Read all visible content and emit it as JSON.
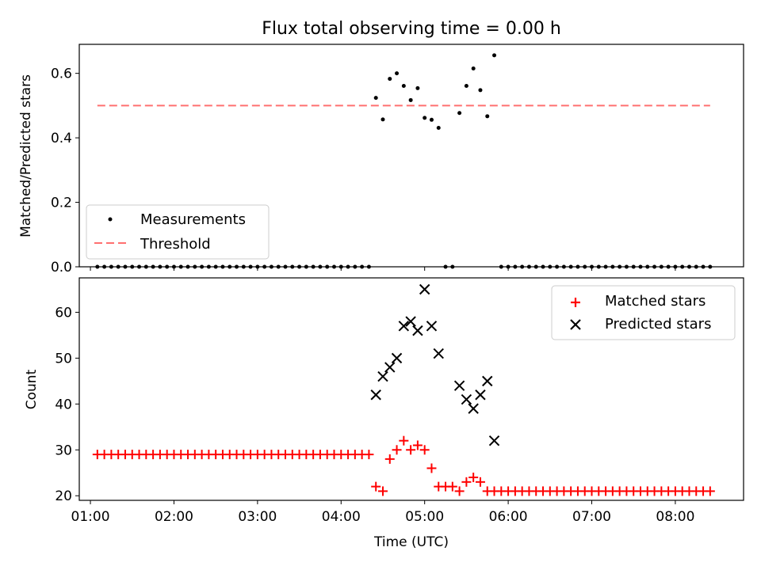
{
  "title": "Flux total observing time = 0.00 h",
  "colors": {
    "measurements": "#000000",
    "threshold": "#ff7070",
    "matched": "#ff0000",
    "predicted": "#000000"
  },
  "chart_data": [
    {
      "type": "scatter",
      "ylabel": "Matched/Predicted stars",
      "ylim": [
        0,
        0.69
      ],
      "yticks": [
        0.0,
        0.2,
        0.4,
        0.6
      ],
      "ytick_labels": [
        "0.0",
        "0.2",
        "0.4",
        "0.6"
      ],
      "xlim": [
        "00:52",
        "08:49"
      ],
      "legend": {
        "position": "lower-left",
        "entries": [
          "Measurements",
          "Threshold"
        ]
      },
      "threshold": {
        "name": "Threshold",
        "value": 0.5,
        "x_range": [
          "01:05",
          "08:25"
        ]
      },
      "series": [
        {
          "name": "Measurements",
          "points": [
            [
              "01:05",
              0
            ],
            [
              "01:10",
              0
            ],
            [
              "01:15",
              0
            ],
            [
              "01:20",
              0
            ],
            [
              "01:25",
              0
            ],
            [
              "01:30",
              0
            ],
            [
              "01:35",
              0
            ],
            [
              "01:40",
              0
            ],
            [
              "01:45",
              0
            ],
            [
              "01:50",
              0
            ],
            [
              "01:55",
              0
            ],
            [
              "02:00",
              0
            ],
            [
              "02:05",
              0
            ],
            [
              "02:10",
              0
            ],
            [
              "02:15",
              0
            ],
            [
              "02:20",
              0
            ],
            [
              "02:25",
              0
            ],
            [
              "02:30",
              0
            ],
            [
              "02:35",
              0
            ],
            [
              "02:40",
              0
            ],
            [
              "02:45",
              0
            ],
            [
              "02:50",
              0
            ],
            [
              "02:55",
              0
            ],
            [
              "03:00",
              0
            ],
            [
              "03:05",
              0
            ],
            [
              "03:10",
              0
            ],
            [
              "03:15",
              0
            ],
            [
              "03:20",
              0
            ],
            [
              "03:25",
              0
            ],
            [
              "03:30",
              0
            ],
            [
              "03:35",
              0
            ],
            [
              "03:40",
              0
            ],
            [
              "03:45",
              0
            ],
            [
              "03:50",
              0
            ],
            [
              "03:55",
              0
            ],
            [
              "04:00",
              0
            ],
            [
              "04:05",
              0
            ],
            [
              "04:10",
              0
            ],
            [
              "04:15",
              0
            ],
            [
              "04:20",
              0
            ],
            [
              "04:25",
              0.524
            ],
            [
              "04:30",
              0.457
            ],
            [
              "04:35",
              0.583
            ],
            [
              "04:40",
              0.6
            ],
            [
              "04:45",
              0.561
            ],
            [
              "04:50",
              0.517
            ],
            [
              "04:55",
              0.554
            ],
            [
              "05:00",
              0.462
            ],
            [
              "05:05",
              0.456
            ],
            [
              "05:10",
              0.431
            ],
            [
              "05:15",
              0
            ],
            [
              "05:20",
              0
            ],
            [
              "05:25",
              0.477
            ],
            [
              "05:30",
              0.561
            ],
            [
              "05:35",
              0.615
            ],
            [
              "05:40",
              0.548
            ],
            [
              "05:45",
              0.467
            ],
            [
              "05:50",
              0.656
            ],
            [
              "05:55",
              0
            ],
            [
              "06:00",
              0
            ],
            [
              "06:05",
              0
            ],
            [
              "06:10",
              0
            ],
            [
              "06:15",
              0
            ],
            [
              "06:20",
              0
            ],
            [
              "06:25",
              0
            ],
            [
              "06:30",
              0
            ],
            [
              "06:35",
              0
            ],
            [
              "06:40",
              0
            ],
            [
              "06:45",
              0
            ],
            [
              "06:50",
              0
            ],
            [
              "06:55",
              0
            ],
            [
              "07:00",
              0
            ],
            [
              "07:05",
              0
            ],
            [
              "07:10",
              0
            ],
            [
              "07:15",
              0
            ],
            [
              "07:20",
              0
            ],
            [
              "07:25",
              0
            ],
            [
              "07:30",
              0
            ],
            [
              "07:35",
              0
            ],
            [
              "07:40",
              0
            ],
            [
              "07:45",
              0
            ],
            [
              "07:50",
              0
            ],
            [
              "07:55",
              0
            ],
            [
              "08:00",
              0
            ],
            [
              "08:05",
              0
            ],
            [
              "08:10",
              0
            ],
            [
              "08:15",
              0
            ],
            [
              "08:20",
              0
            ],
            [
              "08:25",
              0
            ]
          ]
        }
      ]
    },
    {
      "type": "scatter",
      "ylabel": "Count",
      "xlabel": "Time (UTC)",
      "ylim": [
        19,
        67.5
      ],
      "yticks": [
        20,
        30,
        40,
        50,
        60
      ],
      "ytick_labels": [
        "20",
        "30",
        "40",
        "50",
        "60"
      ],
      "xlim": [
        "00:52",
        "08:49"
      ],
      "xticks": [
        "01:00",
        "02:00",
        "03:00",
        "04:00",
        "05:00",
        "06:00",
        "07:00",
        "08:00"
      ],
      "xtick_labels": [
        "01:00",
        "02:00",
        "03:00",
        "04:00",
        "05:00",
        "06:00",
        "07:00",
        "08:00"
      ],
      "legend": {
        "position": "top-right",
        "entries": [
          "Matched stars",
          "Predicted stars"
        ]
      },
      "series": [
        {
          "name": "Matched stars",
          "points": [
            [
              "01:05",
              29
            ],
            [
              "01:10",
              29
            ],
            [
              "01:15",
              29
            ],
            [
              "01:20",
              29
            ],
            [
              "01:25",
              29
            ],
            [
              "01:30",
              29
            ],
            [
              "01:35",
              29
            ],
            [
              "01:40",
              29
            ],
            [
              "01:45",
              29
            ],
            [
              "01:50",
              29
            ],
            [
              "01:55",
              29
            ],
            [
              "02:00",
              29
            ],
            [
              "02:05",
              29
            ],
            [
              "02:10",
              29
            ],
            [
              "02:15",
              29
            ],
            [
              "02:20",
              29
            ],
            [
              "02:25",
              29
            ],
            [
              "02:30",
              29
            ],
            [
              "02:35",
              29
            ],
            [
              "02:40",
              29
            ],
            [
              "02:45",
              29
            ],
            [
              "02:50",
              29
            ],
            [
              "02:55",
              29
            ],
            [
              "03:00",
              29
            ],
            [
              "03:05",
              29
            ],
            [
              "03:10",
              29
            ],
            [
              "03:15",
              29
            ],
            [
              "03:20",
              29
            ],
            [
              "03:25",
              29
            ],
            [
              "03:30",
              29
            ],
            [
              "03:35",
              29
            ],
            [
              "03:40",
              29
            ],
            [
              "03:45",
              29
            ],
            [
              "03:50",
              29
            ],
            [
              "03:55",
              29
            ],
            [
              "04:00",
              29
            ],
            [
              "04:05",
              29
            ],
            [
              "04:10",
              29
            ],
            [
              "04:15",
              29
            ],
            [
              "04:20",
              29
            ],
            [
              "04:25",
              22
            ],
            [
              "04:30",
              21
            ],
            [
              "04:35",
              28
            ],
            [
              "04:40",
              30
            ],
            [
              "04:45",
              32
            ],
            [
              "04:50",
              30
            ],
            [
              "04:55",
              31
            ],
            [
              "05:00",
              30
            ],
            [
              "05:05",
              26
            ],
            [
              "05:10",
              22
            ],
            [
              "05:15",
              22
            ],
            [
              "05:20",
              22
            ],
            [
              "05:25",
              21
            ],
            [
              "05:30",
              23
            ],
            [
              "05:35",
              24
            ],
            [
              "05:40",
              23
            ],
            [
              "05:45",
              21
            ],
            [
              "05:50",
              21
            ],
            [
              "05:55",
              21
            ],
            [
              "06:00",
              21
            ],
            [
              "06:05",
              21
            ],
            [
              "06:10",
              21
            ],
            [
              "06:15",
              21
            ],
            [
              "06:20",
              21
            ],
            [
              "06:25",
              21
            ],
            [
              "06:30",
              21
            ],
            [
              "06:35",
              21
            ],
            [
              "06:40",
              21
            ],
            [
              "06:45",
              21
            ],
            [
              "06:50",
              21
            ],
            [
              "06:55",
              21
            ],
            [
              "07:00",
              21
            ],
            [
              "07:05",
              21
            ],
            [
              "07:10",
              21
            ],
            [
              "07:15",
              21
            ],
            [
              "07:20",
              21
            ],
            [
              "07:25",
              21
            ],
            [
              "07:30",
              21
            ],
            [
              "07:35",
              21
            ],
            [
              "07:40",
              21
            ],
            [
              "07:45",
              21
            ],
            [
              "07:50",
              21
            ],
            [
              "07:55",
              21
            ],
            [
              "08:00",
              21
            ],
            [
              "08:05",
              21
            ],
            [
              "08:10",
              21
            ],
            [
              "08:15",
              21
            ],
            [
              "08:20",
              21
            ],
            [
              "08:25",
              21
            ]
          ]
        },
        {
          "name": "Predicted stars",
          "points": [
            [
              "04:25",
              42
            ],
            [
              "04:30",
              46
            ],
            [
              "04:35",
              48
            ],
            [
              "04:40",
              50
            ],
            [
              "04:45",
              57
            ],
            [
              "04:50",
              58
            ],
            [
              "04:55",
              56
            ],
            [
              "05:00",
              65
            ],
            [
              "05:05",
              57
            ],
            [
              "05:10",
              51
            ],
            [
              "05:25",
              44
            ],
            [
              "05:30",
              41
            ],
            [
              "05:35",
              39
            ],
            [
              "05:40",
              42
            ],
            [
              "05:45",
              45
            ],
            [
              "05:50",
              32
            ]
          ]
        }
      ]
    }
  ]
}
